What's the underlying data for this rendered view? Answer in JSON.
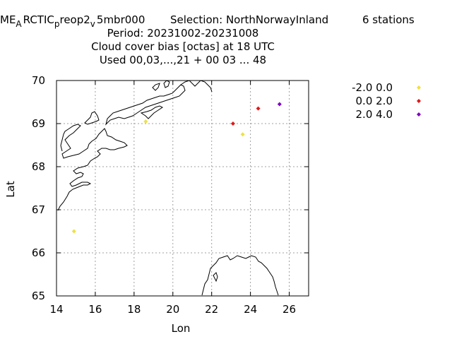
{
  "header": {
    "exp_prefix": "ME",
    "exp_sub1": "A",
    "exp_mid": "RCTIC",
    "exp_sub2": "p",
    "exp_mid2": "reop2",
    "exp_sub3": "v",
    "exp_suffix": "5mbr000",
    "selection": "Selection: NorthNorwayInland",
    "stations": "6 stations",
    "period": "Period: 20231002-20231008",
    "title": "Cloud cover bias [octas] at  18 UTC",
    "used": "Used  00,03,...,21  + 00 03 ... 48"
  },
  "chart_data": {
    "type": "scatter",
    "xlabel": "Lon",
    "ylabel": "Lat",
    "xlim": [
      14,
      27
    ],
    "ylim": [
      65,
      70
    ],
    "xticks": [
      14,
      16,
      18,
      20,
      22,
      24,
      26
    ],
    "yticks": [
      65,
      66,
      67,
      68,
      69,
      70
    ],
    "grid": true,
    "legend_position": "top-right outside",
    "series": [
      {
        "name": "-2.0 0.0",
        "color": "#f0e040",
        "points": [
          [
            14.9,
            66.5
          ],
          [
            18.6,
            69.05
          ],
          [
            23.6,
            68.75
          ]
        ]
      },
      {
        "name": "0.0 2.0",
        "color": "#e01818",
        "points": [
          [
            23.1,
            69.0
          ],
          [
            24.4,
            69.35
          ]
        ]
      },
      {
        "name": "2.0 4.0",
        "color": "#8000c0",
        "points": [
          [
            25.5,
            69.45
          ]
        ]
      }
    ]
  }
}
